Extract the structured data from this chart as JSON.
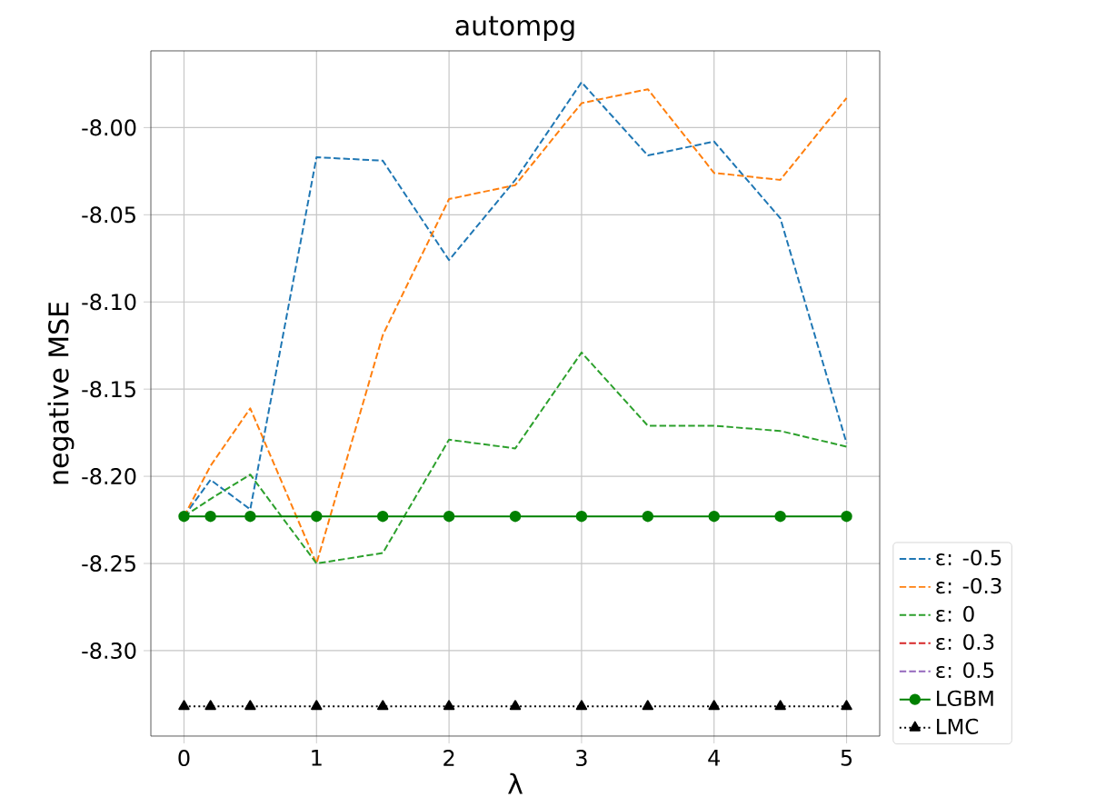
{
  "chart_data": {
    "type": "line",
    "title": "autompg",
    "xlabel": "λ",
    "ylabel": "negative MSE",
    "x": [
      0,
      0.2,
      0.5,
      1,
      1.5,
      2,
      2.5,
      3,
      3.5,
      4,
      4.5,
      5
    ],
    "series": [
      {
        "name": "ε: -0.5",
        "color": "#1f77b4",
        "line_style": "dashed",
        "marker": "none",
        "values": [
          -8.223,
          -8.202,
          -8.219,
          -8.017,
          -8.019,
          -8.076,
          -8.03,
          -7.974,
          -8.016,
          -8.008,
          -8.052,
          -8.181
        ]
      },
      {
        "name": "ε: -0.3",
        "color": "#ff7f0e",
        "line_style": "dashed",
        "marker": "none",
        "values": [
          -8.223,
          -8.194,
          -8.161,
          -8.25,
          -8.119,
          -8.041,
          -8.033,
          -7.986,
          -7.978,
          -8.026,
          -8.03,
          -7.983
        ]
      },
      {
        "name": "ε: 0",
        "color": "#2ca02c",
        "line_style": "dashed",
        "marker": "none",
        "values": [
          -8.223,
          -8.213,
          -8.199,
          -8.25,
          -8.244,
          -8.179,
          -8.184,
          -8.129,
          -8.171,
          -8.171,
          -8.174,
          -8.183
        ]
      },
      {
        "name": "ε: 0.3",
        "color": "#d62728",
        "line_style": "dashed",
        "marker": "none",
        "values": [
          null,
          null,
          null,
          null,
          null,
          null,
          null,
          null,
          null,
          null,
          null,
          null
        ]
      },
      {
        "name": "ε: 0.5",
        "color": "#9467bd",
        "line_style": "dashed",
        "marker": "none",
        "values": [
          null,
          null,
          null,
          null,
          null,
          null,
          null,
          null,
          null,
          null,
          null,
          null
        ]
      },
      {
        "name": "LGBM",
        "color": "#008000",
        "line_style": "solid",
        "marker": "circle",
        "values": [
          -8.223,
          -8.223,
          -8.223,
          -8.223,
          -8.223,
          -8.223,
          -8.223,
          -8.223,
          -8.223,
          -8.223,
          -8.223,
          -8.223
        ]
      },
      {
        "name": "LMC",
        "color": "#000000",
        "line_style": "dotted",
        "marker": "triangle",
        "values": [
          -8.332,
          -8.332,
          -8.332,
          -8.332,
          -8.332,
          -8.332,
          -8.332,
          -8.332,
          -8.332,
          -8.332,
          -8.332,
          -8.332
        ]
      }
    ],
    "xlim": [
      -0.25,
      5.25
    ],
    "ylim": [
      -8.349,
      -7.956
    ],
    "xticks": [
      0,
      1,
      2,
      3,
      4,
      5
    ],
    "yticks": [
      {
        "value": -8.3,
        "label": "-8.30"
      },
      {
        "value": -8.25,
        "label": "-8.25"
      },
      {
        "value": -8.2,
        "label": "-8.20"
      },
      {
        "value": -8.15,
        "label": "-8.15"
      },
      {
        "value": -8.1,
        "label": "-8.10"
      },
      {
        "value": -8.05,
        "label": "-8.05"
      },
      {
        "value": -8.0,
        "label": "-8.00"
      }
    ],
    "grid": true,
    "legend": "right"
  }
}
